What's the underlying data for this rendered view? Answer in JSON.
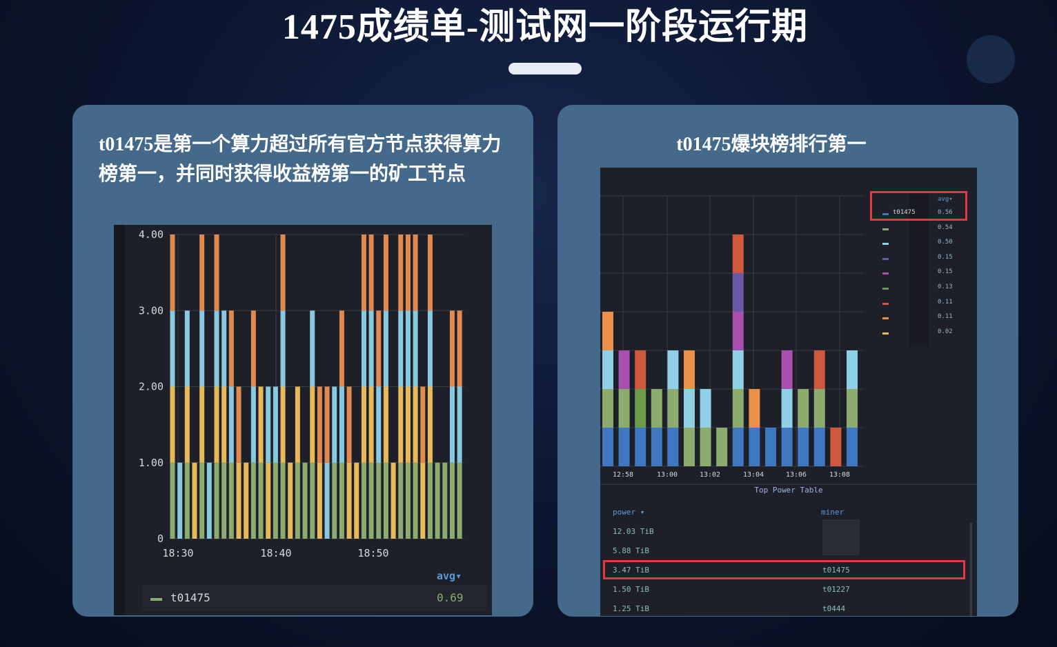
{
  "slide": {
    "title": "1475成绩单-测试网一阶段运行期"
  },
  "left_panel": {
    "text": "t01475是第一个算力超过所有官方节点获得算力榜第一，并同时获得收益榜第一的矿工节点",
    "legend": {
      "header": "avg▾",
      "series": "t01475",
      "value": "0.69",
      "color": "#8cab6e"
    }
  },
  "right_panel": {
    "text": "t01475爆块榜排行第一",
    "legend": {
      "header": "avg▾",
      "rows": [
        {
          "name": "t01475",
          "value": "0.56",
          "color": "#3f78c1"
        },
        {
          "name": "",
          "value": "0.54",
          "color": "#8cab6e"
        },
        {
          "name": "",
          "value": "0.50",
          "color": "#8fd0e6"
        },
        {
          "name": "",
          "value": "0.15",
          "color": "#6a5aa5"
        },
        {
          "name": "",
          "value": "0.15",
          "color": "#a94fb0"
        },
        {
          "name": "",
          "value": "0.13",
          "color": "#6d9a4c"
        },
        {
          "name": "",
          "value": "0.11",
          "color": "#d0583f"
        },
        {
          "name": "",
          "value": "0.11",
          "color": "#ec9047"
        },
        {
          "name": "",
          "value": "0.02",
          "color": "#e8b95a"
        }
      ]
    },
    "table": {
      "title": "Top Power Table",
      "headers": [
        "power ▾",
        "miner"
      ],
      "rows": [
        [
          "12.03 TiB",
          ""
        ],
        [
          "5.88 TiB",
          ""
        ],
        [
          "3.47 TiB",
          "t01475"
        ],
        [
          "1.50 TiB",
          "t01227"
        ],
        [
          "1.25 TiB",
          "t0444"
        ]
      ],
      "highlight_row": 2
    }
  },
  "chart_data": [
    {
      "type": "bar",
      "stacked": true,
      "ylim": [
        0,
        4
      ],
      "yticks": [
        "0",
        "1.00",
        "2.00",
        "3.00",
        "4.00"
      ],
      "xticks": [
        "18:30",
        "18:40",
        "18:50"
      ],
      "grid": true,
      "colors": {
        "G": "#8cab6e",
        "B": "#88c9e0",
        "Y": "#e8b95a",
        "O": "#e08a4f"
      },
      "stacks": [
        "GYBO",
        "B",
        "GYB",
        "Y",
        "GYBO",
        "B",
        "GYBO",
        "GYB",
        "GBO",
        "YO",
        "Y",
        "GBO",
        "GY",
        "YB",
        "GB",
        "GYBO",
        "Y",
        "GY",
        "G",
        "GYB",
        "YO",
        "BO",
        "GB",
        "GBO",
        "YO",
        "Y",
        "GYBO",
        "GYBO",
        "GBO",
        "GYBO",
        "Y",
        "GYBO",
        "GYBO",
        "GYBO",
        "YO",
        "GYBO",
        "G",
        "G",
        "GBO",
        "GBO"
      ]
    },
    {
      "type": "bar",
      "stacked": true,
      "xticks": [
        "12:58",
        "13:00",
        "13:02",
        "13:04",
        "13:06",
        "13:08"
      ],
      "grid": true,
      "colors": {
        "b": "#3f78c1",
        "g": "#8cab6e",
        "l": "#8fd0e6",
        "o": "#ec9047",
        "m": "#a94fb0",
        "r": "#d0583f",
        "v": "#6a5aa5",
        "d": "#6d9a4c"
      },
      "stacks": [
        "bglo",
        "bgm",
        "bdr",
        "bg",
        "bgl",
        "glo",
        "gl",
        "g",
        "bglmvr",
        "bo",
        "b",
        "blm",
        "bg",
        "bgr",
        "r",
        "bgl"
      ]
    }
  ]
}
